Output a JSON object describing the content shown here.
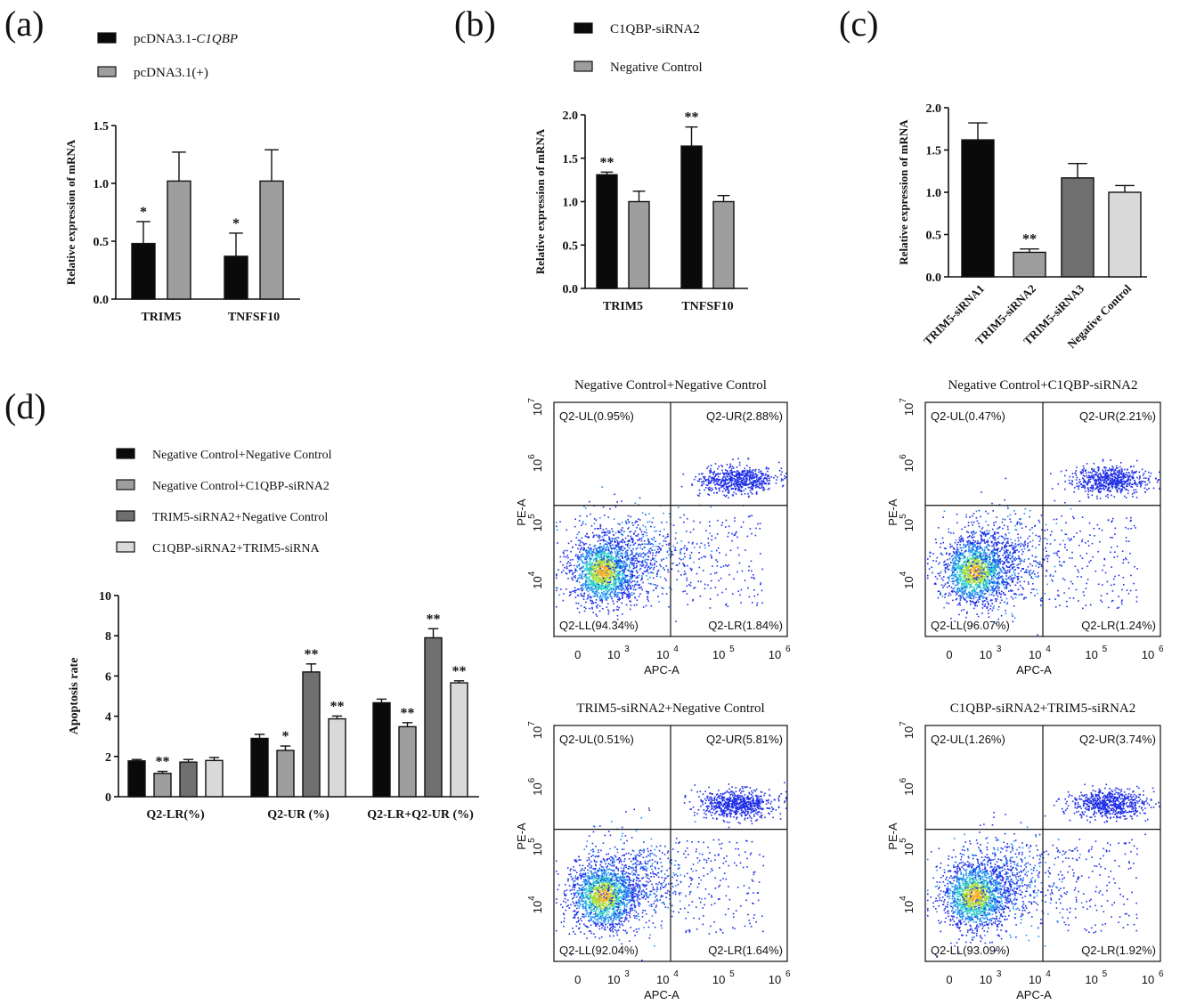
{
  "colors": {
    "black": "#0a0a0a",
    "gray": "#9e9e9e",
    "darkgray": "#6f6f6f",
    "lightgray": "#d9d9d9"
  },
  "chart_data": [
    {
      "id": "a",
      "panel_label": "(a)",
      "type": "bar",
      "categories": [
        "TRIM5",
        "TNFSF10"
      ],
      "series": [
        {
          "name": "pcDNA3.1-C1QBP",
          "name_prefix": "pcDNA3.1-",
          "name_italic": "C1QBP",
          "color": "black",
          "values": [
            0.48,
            0.37
          ],
          "errors": [
            0.19,
            0.2
          ],
          "sig": [
            "*",
            "*"
          ]
        },
        {
          "name": "pcDNA3.1(+)",
          "color": "gray",
          "values": [
            1.02,
            1.02
          ],
          "errors": [
            0.25,
            0.27
          ],
          "sig": [
            "",
            ""
          ]
        }
      ],
      "ylabel": "Relative expression of mRNA",
      "ylim": [
        0,
        1.5
      ],
      "yticks": [
        "0.0",
        "0.5",
        "1.0",
        "1.5"
      ],
      "grid": false
    },
    {
      "id": "b",
      "panel_label": "(b)",
      "type": "bar",
      "categories": [
        "TRIM5",
        "TNFSF10"
      ],
      "series": [
        {
          "name": "C1QBP-siRNA2",
          "color": "black",
          "values": [
            1.31,
            1.64
          ],
          "errors": [
            0.03,
            0.22
          ],
          "sig": [
            "**",
            "**"
          ]
        },
        {
          "name": "Negative Control",
          "color": "gray",
          "values": [
            1.0,
            1.0
          ],
          "errors": [
            0.12,
            0.07
          ],
          "sig": [
            "",
            ""
          ]
        }
      ],
      "ylabel": "Relative expression of mRNA",
      "ylim": [
        0,
        2.0
      ],
      "yticks": [
        "0.0",
        "0.5",
        "1.0",
        "1.5",
        "2.0"
      ],
      "grid": false
    },
    {
      "id": "c",
      "panel_label": "(c)",
      "type": "bar",
      "categories": [
        "TRIM5-siRNA1",
        "TRIM5-siRNA2",
        "TRIM5-siRNA3",
        "Negative Control"
      ],
      "colors": [
        "black",
        "gray",
        "darkgray",
        "lightgray"
      ],
      "values": [
        1.62,
        0.29,
        1.17,
        1.0
      ],
      "errors": [
        0.2,
        0.04,
        0.17,
        0.08
      ],
      "sig": [
        "",
        "**",
        "",
        ""
      ],
      "ylabel": "Relative expression of mRNA",
      "ylim": [
        0,
        2.0
      ],
      "yticks": [
        "0.0",
        "0.5",
        "1.0",
        "1.5",
        "2.0"
      ],
      "grid": false
    },
    {
      "id": "d",
      "panel_label": "(d)",
      "type": "bar",
      "categories": [
        "Q2-LR(%)",
        "Q2-UR (%)",
        "Q2-LR+Q2-UR (%)"
      ],
      "series": [
        {
          "name": "Negative Control+Negative Control",
          "color": "black",
          "values": [
            1.78,
            2.9,
            4.67
          ],
          "errors": [
            0.07,
            0.2,
            0.18
          ],
          "sig": [
            "",
            "",
            ""
          ]
        },
        {
          "name": "Negative Control+C1QBP-siRNA2",
          "color": "gray",
          "values": [
            1.16,
            2.3,
            3.48
          ],
          "errors": [
            0.1,
            0.22,
            0.2
          ],
          "sig": [
            "**",
            "*",
            "**"
          ]
        },
        {
          "name": "TRIM5-siRNA2+Negative Control",
          "color": "darkgray",
          "values": [
            1.72,
            6.2,
            7.9
          ],
          "errors": [
            0.13,
            0.4,
            0.45
          ],
          "sig": [
            "",
            "**",
            "**"
          ]
        },
        {
          "name": "C1QBP-siRNA2+TRIM5-siRNA",
          "color": "lightgray",
          "values": [
            1.8,
            3.87,
            5.66
          ],
          "errors": [
            0.15,
            0.14,
            0.1
          ],
          "sig": [
            "",
            "**",
            "**"
          ]
        }
      ],
      "ylabel": "Apoptosis rate",
      "ylim": [
        0,
        10
      ],
      "yticks": [
        "0",
        "2",
        "4",
        "6",
        "8",
        "10"
      ],
      "grid": false
    },
    {
      "id": "flow",
      "type": "scatter",
      "xlabel": "APC-A",
      "ylabel": "PE-A",
      "xticks": [
        "0",
        "10",
        "10",
        "10",
        "10"
      ],
      "xtick_exp": [
        "",
        "3",
        "4",
        "5",
        "6"
      ],
      "yticks": [
        "10",
        "10",
        "10",
        "10"
      ],
      "ytick_exp": [
        "4",
        "5",
        "6",
        "7"
      ],
      "plots": [
        {
          "title": "Negative Control+Negative Control",
          "UL": "Q2-UL(0.95%)",
          "UR": "Q2-UR(2.88%)",
          "LL": "Q2-LL(94.34%)",
          "LR": "Q2-LR(1.84%)"
        },
        {
          "title": "Negative Control+C1QBP-siRNA2",
          "UL": "Q2-UL(0.47%)",
          "UR": "Q2-UR(2.21%)",
          "LL": "Q2-LL(96.07%)",
          "LR": "Q2-LR(1.24%)"
        },
        {
          "title": "TRIM5-siRNA2+Negative Control",
          "UL": "Q2-UL(0.51%)",
          "UR": "Q2-UR(5.81%)",
          "LL": "Q2-LL(92.04%)",
          "LR": "Q2-LR(1.64%)"
        },
        {
          "title": "C1QBP-siRNA2+TRIM5-siRNA2",
          "UL": "Q2-UL(1.26%)",
          "UR": "Q2-UR(3.74%)",
          "LL": "Q2-LL(93.09%)",
          "LR": "Q2-LR(1.92%)"
        }
      ]
    }
  ]
}
